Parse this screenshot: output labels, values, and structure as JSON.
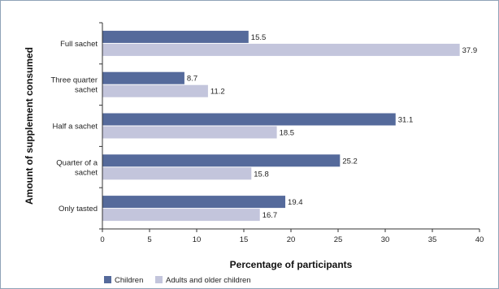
{
  "chart_data": {
    "type": "bar",
    "orientation": "horizontal",
    "title": "",
    "xlabel": "Percentage of participants",
    "ylabel": "Amount of supplement consumed",
    "xlim": [
      0,
      40
    ],
    "xticks": [
      0,
      5,
      10,
      15,
      20,
      25,
      30,
      35,
      40
    ],
    "categories": [
      [
        "Full sachet"
      ],
      [
        "Three quarter",
        "sachet"
      ],
      [
        "Half a sachet"
      ],
      [
        "Quarter of a",
        "sachet"
      ],
      [
        "Only tasted"
      ]
    ],
    "series": [
      {
        "name": "Children",
        "color": "#556a9b",
        "values": [
          15.5,
          8.7,
          31.1,
          25.2,
          19.4
        ]
      },
      {
        "name": "Adults and older children",
        "color": "#c3c5dc",
        "values": [
          37.9,
          11.2,
          18.5,
          15.8,
          16.7
        ]
      }
    ],
    "grid": false,
    "legend": "bottom-left"
  }
}
